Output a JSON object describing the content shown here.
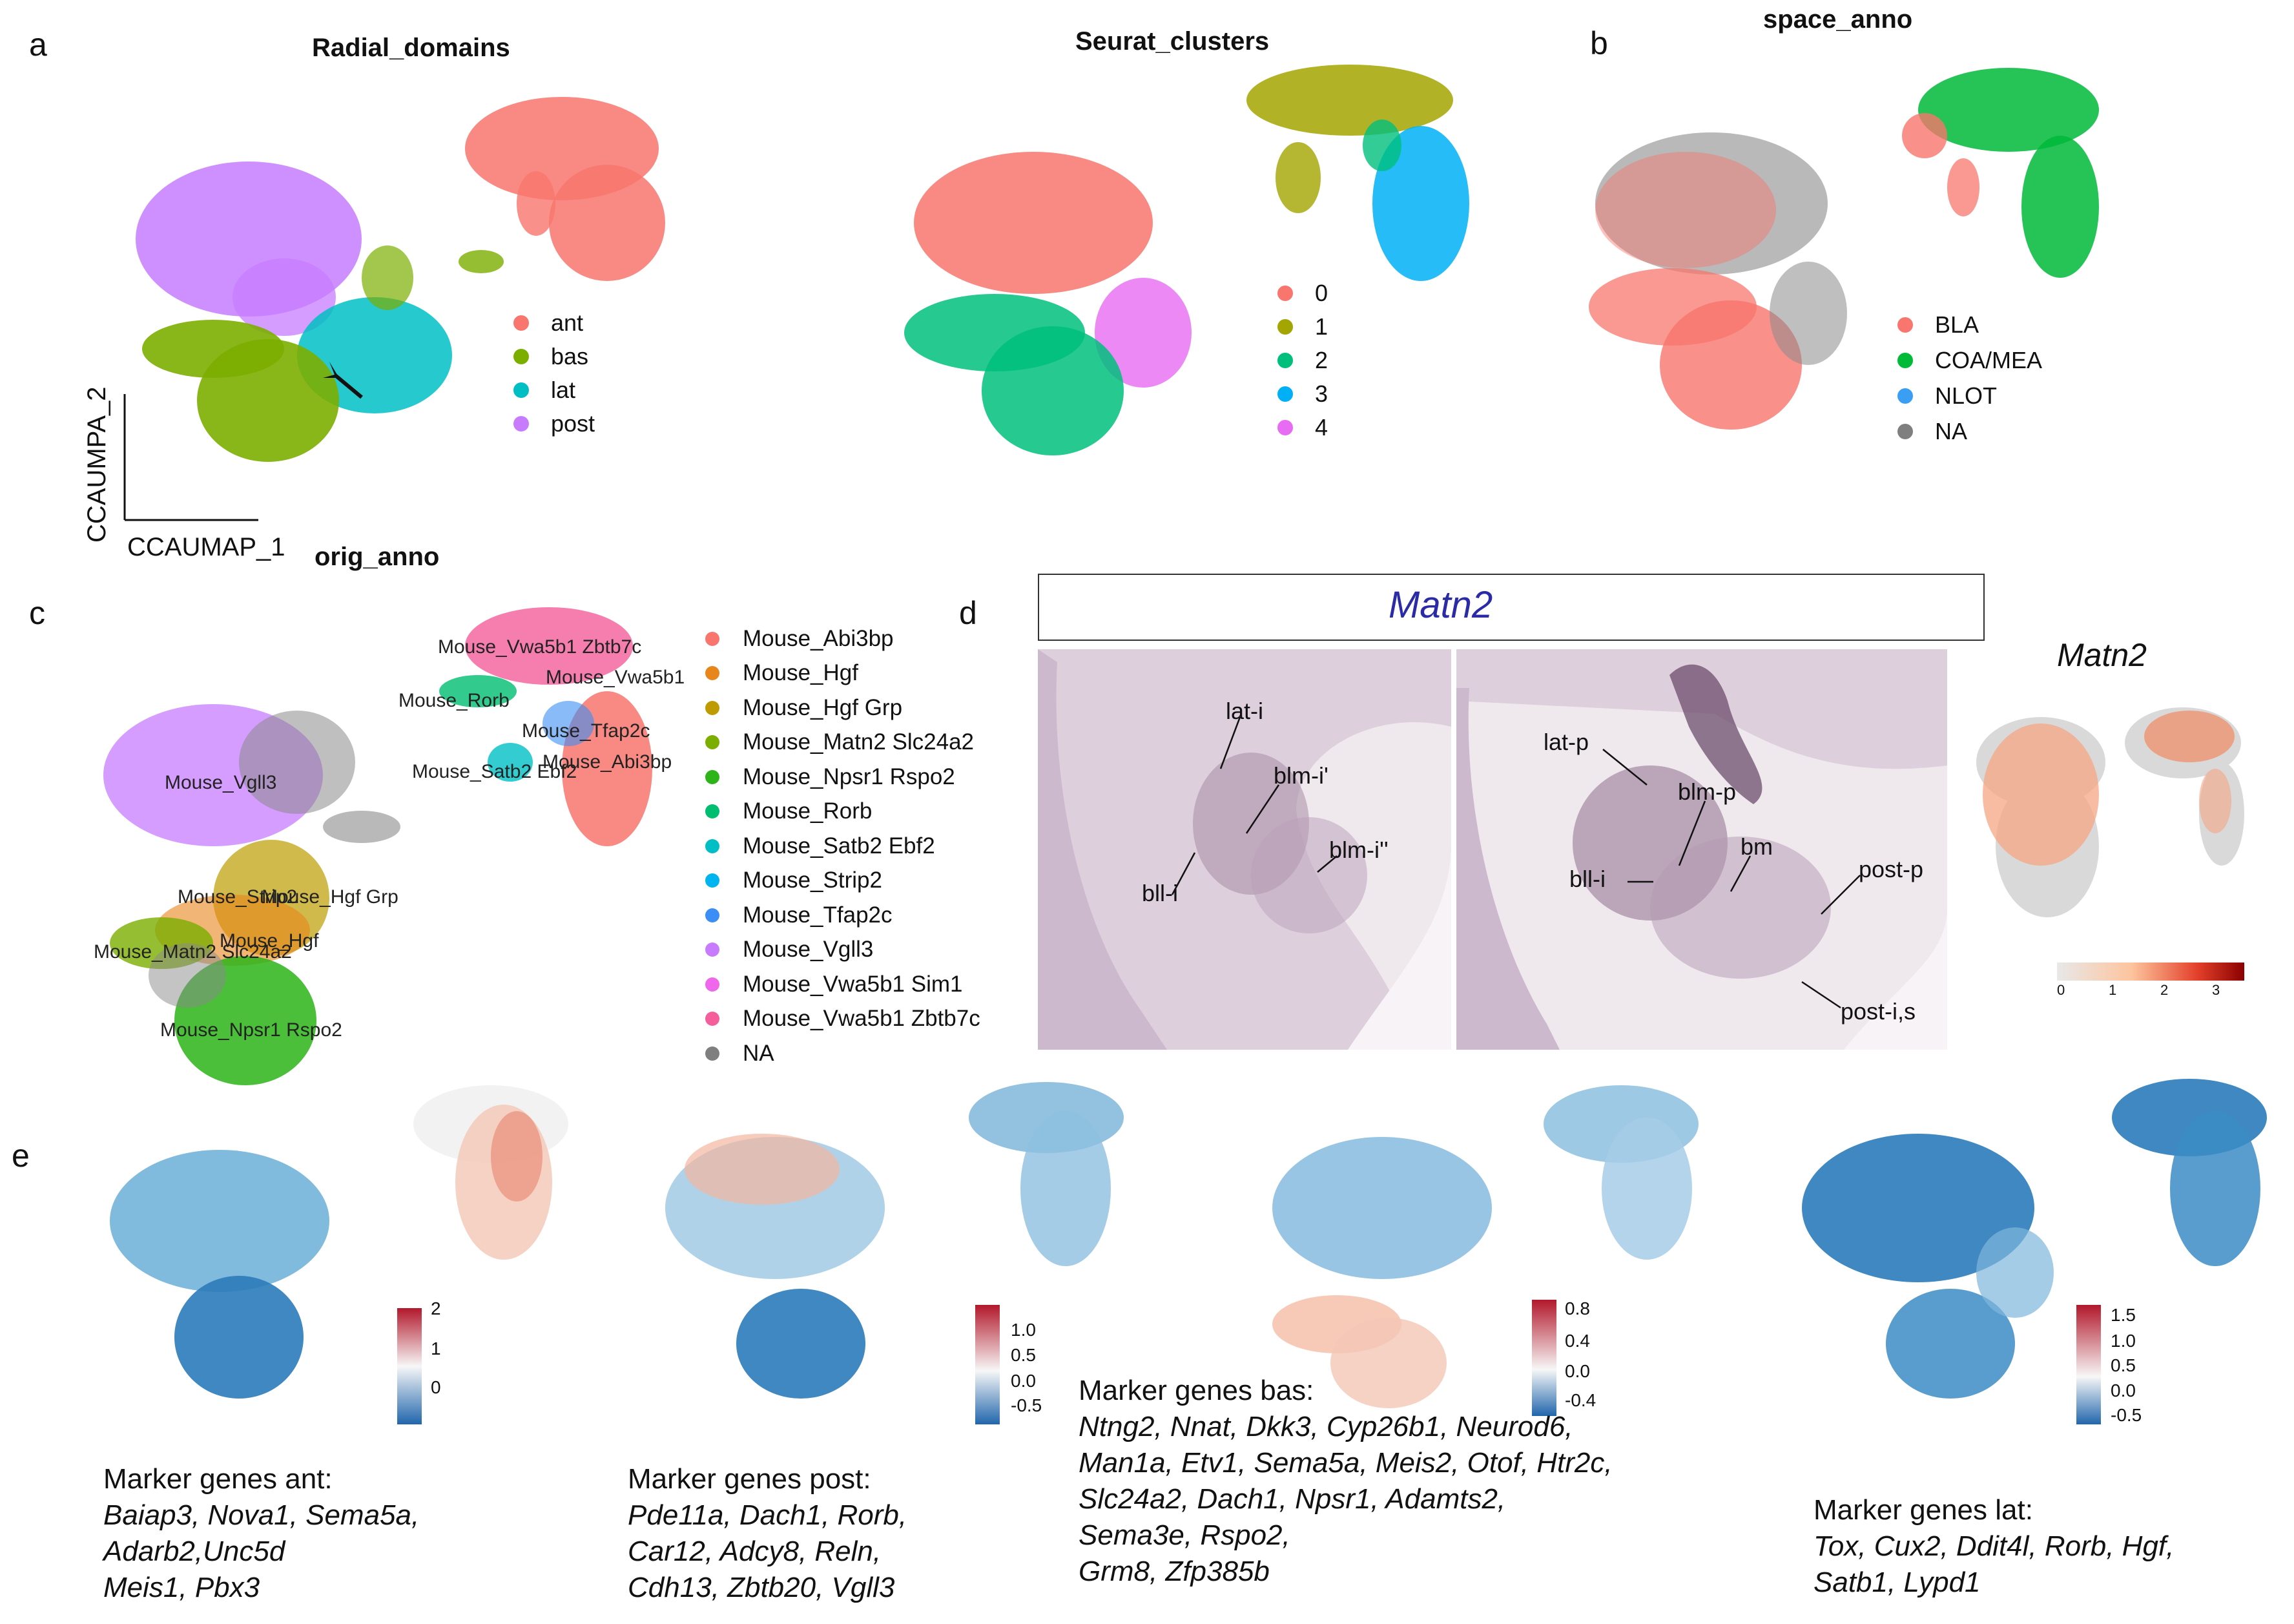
{
  "panels": {
    "a": {
      "letter": "a",
      "title1": "Radial_domains",
      "title2": "Seurat_clusters",
      "legend1": [
        {
          "label": "ant",
          "color": "#f8766d"
        },
        {
          "label": "bas",
          "color": "#7cae00"
        },
        {
          "label": "lat",
          "color": "#00bfc4"
        },
        {
          "label": "post",
          "color": "#c77cff"
        }
      ],
      "legend2": [
        {
          "label": "0",
          "color": "#f8766d"
        },
        {
          "label": "1",
          "color": "#a3a500"
        },
        {
          "label": "2",
          "color": "#00bf7d"
        },
        {
          "label": "3",
          "color": "#00b0f6"
        },
        {
          "label": "4",
          "color": "#e76bf3"
        }
      ],
      "xaxis": "CCAUMAP_1",
      "yaxis": "CCAUMPA_2"
    },
    "b": {
      "letter": "b",
      "title": "space_anno",
      "legend": [
        {
          "label": "BLA",
          "color": "#f8766d"
        },
        {
          "label": "COA/MEA",
          "color": "#00ba38"
        },
        {
          "label": "NLOT",
          "color": "#3a9ef5"
        },
        {
          "label": "NA",
          "color": "#7f7f7f"
        }
      ]
    },
    "c": {
      "letter": "c",
      "title": "orig_anno",
      "legend": [
        {
          "label": "Mouse_Abi3bp",
          "color": "#f8766d"
        },
        {
          "label": "Mouse_Hgf",
          "color": "#e7861b"
        },
        {
          "label": "Mouse_Hgf Grp",
          "color": "#be9c00"
        },
        {
          "label": "Mouse_Matn2 Slc24a2",
          "color": "#7cae00"
        },
        {
          "label": "Mouse_Npsr1 Rspo2",
          "color": "#2cb418"
        },
        {
          "label": "Mouse_Rorb",
          "color": "#00be70"
        },
        {
          "label": "Mouse_Satb2 Ebf2",
          "color": "#00bfc4"
        },
        {
          "label": "Mouse_Strip2",
          "color": "#00b4ef"
        },
        {
          "label": "Mouse_Tfap2c",
          "color": "#3a8ef5"
        },
        {
          "label": "Mouse_Vgll3",
          "color": "#c77cff"
        },
        {
          "label": "Mouse_Vwa5b1 Sim1",
          "color": "#ef67eb"
        },
        {
          "label": "Mouse_Vwa5b1 Zbtb7c",
          "color": "#f35e9b"
        },
        {
          "label": "NA",
          "color": "#7f7f7f"
        }
      ],
      "cluster_labels": [
        "Mouse_Vwa5b1 Zbtb7c",
        "Mouse_Vwa5b1",
        "Mouse_Rorb",
        "Mouse_Tfap2c",
        "Mouse_Abi3bp",
        "Mouse_Satb2 Ebf2",
        "Mouse_Vgll3",
        "Mouse_Strip2",
        "Mouse_Hgf Grp",
        "Mouse_Hgf",
        "Mouse_Matn2 Slc24a2",
        "Mouse_Npsr1 Rspo2"
      ]
    },
    "d": {
      "letter": "d",
      "title": "Matn2",
      "umap_title": "Matn2",
      "labels_left": [
        "lat-i",
        "blm-i'",
        "blm-i''",
        "bll-i"
      ],
      "labels_right": [
        "lat-p",
        "blm-p",
        "bm",
        "bll-i",
        "post-p",
        "post-i,s"
      ],
      "colorbar_ticks": [
        "0",
        "1",
        "2",
        "3"
      ]
    },
    "e": {
      "letter": "e",
      "markers": [
        {
          "head": "Marker genes ant:",
          "genes": "Baiap3, Nova1, Sema5a,\nAdarb2,Unc5d\nMeis1, Pbx3",
          "ticks": [
            "2",
            "1",
            "0"
          ]
        },
        {
          "head": "Marker genes post:",
          "genes": "Pde11a, Dach1, Rorb,\nCar12, Adcy8, Reln,\nCdh13, Zbtb20, Vgll3",
          "ticks": [
            "1.0",
            "0.5",
            "0.0",
            "-0.5"
          ]
        },
        {
          "head": "Marker genes bas:",
          "genes": "Ntng2, Nnat, Dkk3, Cyp26b1, Neurod6,\nMan1a, Etv1, Sema5a, Meis2, Otof, Htr2c,\nSlc24a2, Dach1, Npsr1, Adamts2,\nSema3e, Rspo2,\nGrm8, Zfp385b",
          "ticks": [
            "0.8",
            "0.4",
            "0.0",
            "-0.4"
          ]
        },
        {
          "head": "Marker genes lat:",
          "genes": "Tox, Cux2, Ddit4l, Rorb, Hgf,\n Satb1, Lypd1",
          "ticks": [
            "1.5",
            "1.0",
            "0.5",
            "0.0",
            "-0.5"
          ]
        }
      ]
    }
  }
}
